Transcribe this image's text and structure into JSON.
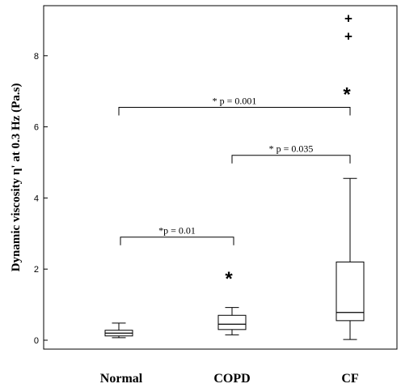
{
  "chart_data": {
    "type": "box",
    "ylabel": "Dynamic viscosity η' at 0.3 Hz (Pa.s)",
    "xlabel": "",
    "ylim": [
      -0.25,
      9.1
    ],
    "yticks": [
      0,
      2,
      4,
      6,
      8
    ],
    "grid": false,
    "categories": [
      "Normal",
      "COPD",
      "CF"
    ],
    "boxes": [
      {
        "name": "Normal",
        "min": 0.07,
        "q1": 0.12,
        "median": 0.2,
        "q3": 0.28,
        "max": 0.48
      },
      {
        "name": "COPD",
        "min": 0.15,
        "q1": 0.3,
        "median": 0.45,
        "q3": 0.7,
        "max": 0.92
      },
      {
        "name": "CF",
        "min": 0.02,
        "q1": 0.55,
        "median": 0.78,
        "q3": 2.2,
        "max": 4.55
      }
    ],
    "outliers": [
      {
        "category": "COPD",
        "value": 1.82,
        "marker": "*"
      },
      {
        "category": "CF",
        "value": 7.0,
        "marker": "*"
      },
      {
        "category": "CF",
        "value": 8.55,
        "marker": "+"
      },
      {
        "category": "CF",
        "value": 9.05,
        "marker": "+"
      }
    ],
    "annotations": [
      {
        "text": "*p = 0.01",
        "from": "Normal",
        "to": "COPD",
        "y": 2.9
      },
      {
        "text": "* p = 0.035",
        "from": "COPD",
        "to": "CF",
        "y": 5.2
      },
      {
        "text": "* p = 0.001",
        "from": "Normal",
        "to": "CF",
        "y": 6.55
      }
    ]
  }
}
